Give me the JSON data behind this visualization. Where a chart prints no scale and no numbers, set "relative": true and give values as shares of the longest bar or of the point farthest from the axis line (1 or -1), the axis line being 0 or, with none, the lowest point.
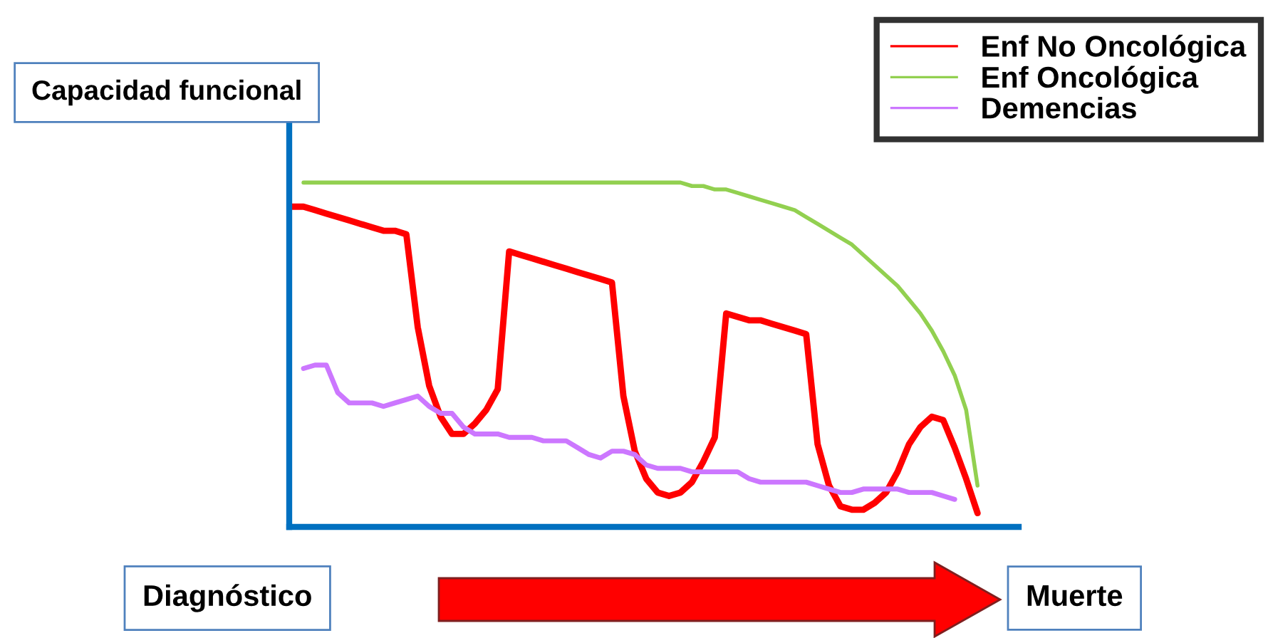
{
  "chart_data": {
    "type": "line",
    "relative": true,
    "legend": "top right",
    "ylabel": "Capacidad funcional",
    "xlabel": "Diagnóstico",
    "annotations": [
      "Muerte"
    ],
    "categories": [
      null,
      null,
      null,
      null,
      null,
      null,
      null,
      null,
      null,
      null,
      null,
      null,
      null,
      null,
      null,
      null,
      null,
      null,
      null,
      null,
      null,
      null,
      null,
      null,
      null,
      null,
      null,
      null,
      null,
      null,
      null,
      null,
      null,
      null,
      null,
      null,
      null,
      null,
      null,
      null,
      null,
      null,
      null,
      null,
      null,
      null,
      null,
      null,
      null,
      null,
      null,
      null,
      null,
      null,
      null,
      null,
      null,
      null,
      null,
      null,
      null,
      null
    ],
    "series": [
      {
        "name": "Enf No Oncológica",
        "color": "#ff0000",
        "values": [
          0.93,
          0.93,
          0.92,
          0.91,
          0.9,
          0.89,
          0.88,
          0.87,
          0.86,
          0.86,
          0.85,
          0.58,
          0.41,
          0.32,
          0.27,
          0.27,
          0.3,
          0.34,
          0.4,
          0.8,
          0.79,
          0.78,
          0.77,
          0.76,
          0.75,
          0.74,
          0.73,
          0.72,
          0.71,
          0.38,
          0.22,
          0.14,
          0.1,
          0.09,
          0.1,
          0.13,
          0.19,
          0.26,
          0.62,
          0.61,
          0.6,
          0.6,
          0.59,
          0.58,
          0.57,
          0.56,
          0.24,
          0.12,
          0.06,
          0.05,
          0.05,
          0.07,
          0.1,
          0.16,
          0.24,
          0.29,
          0.32,
          0.31,
          0.23,
          0.14,
          0.04,
          null
        ]
      },
      {
        "name": "Enf Oncológica",
        "color": "#92d050",
        "values": [
          null,
          1.0,
          1.0,
          1.0,
          1.0,
          1.0,
          1.0,
          1.0,
          1.0,
          1.0,
          1.0,
          1.0,
          1.0,
          1.0,
          1.0,
          1.0,
          1.0,
          1.0,
          1.0,
          1.0,
          1.0,
          1.0,
          1.0,
          1.0,
          1.0,
          1.0,
          1.0,
          1.0,
          1.0,
          1.0,
          1.0,
          1.0,
          1.0,
          1.0,
          1.0,
          0.99,
          0.99,
          0.98,
          0.98,
          0.97,
          0.96,
          0.95,
          0.94,
          0.93,
          0.92,
          0.9,
          0.88,
          0.86,
          0.84,
          0.82,
          0.79,
          0.76,
          0.73,
          0.7,
          0.66,
          0.62,
          0.57,
          0.51,
          0.44,
          0.34,
          0.12,
          null
        ]
      },
      {
        "name": "Demencias",
        "color": "#cc77ff",
        "values": [
          null,
          0.46,
          0.47,
          0.47,
          0.39,
          0.36,
          0.36,
          0.36,
          0.35,
          0.36,
          0.37,
          0.38,
          0.35,
          0.33,
          0.33,
          0.29,
          0.27,
          0.27,
          0.27,
          0.26,
          0.26,
          0.26,
          0.25,
          0.25,
          0.25,
          0.23,
          0.21,
          0.2,
          0.22,
          0.22,
          0.21,
          0.18,
          0.17,
          0.17,
          0.17,
          0.16,
          0.16,
          0.16,
          0.16,
          0.16,
          0.14,
          0.13,
          0.13,
          0.13,
          0.13,
          0.13,
          0.12,
          0.11,
          0.1,
          0.1,
          0.11,
          0.11,
          0.11,
          0.11,
          0.1,
          0.1,
          0.1,
          0.09,
          0.08,
          null,
          null,
          null
        ]
      }
    ]
  }
}
